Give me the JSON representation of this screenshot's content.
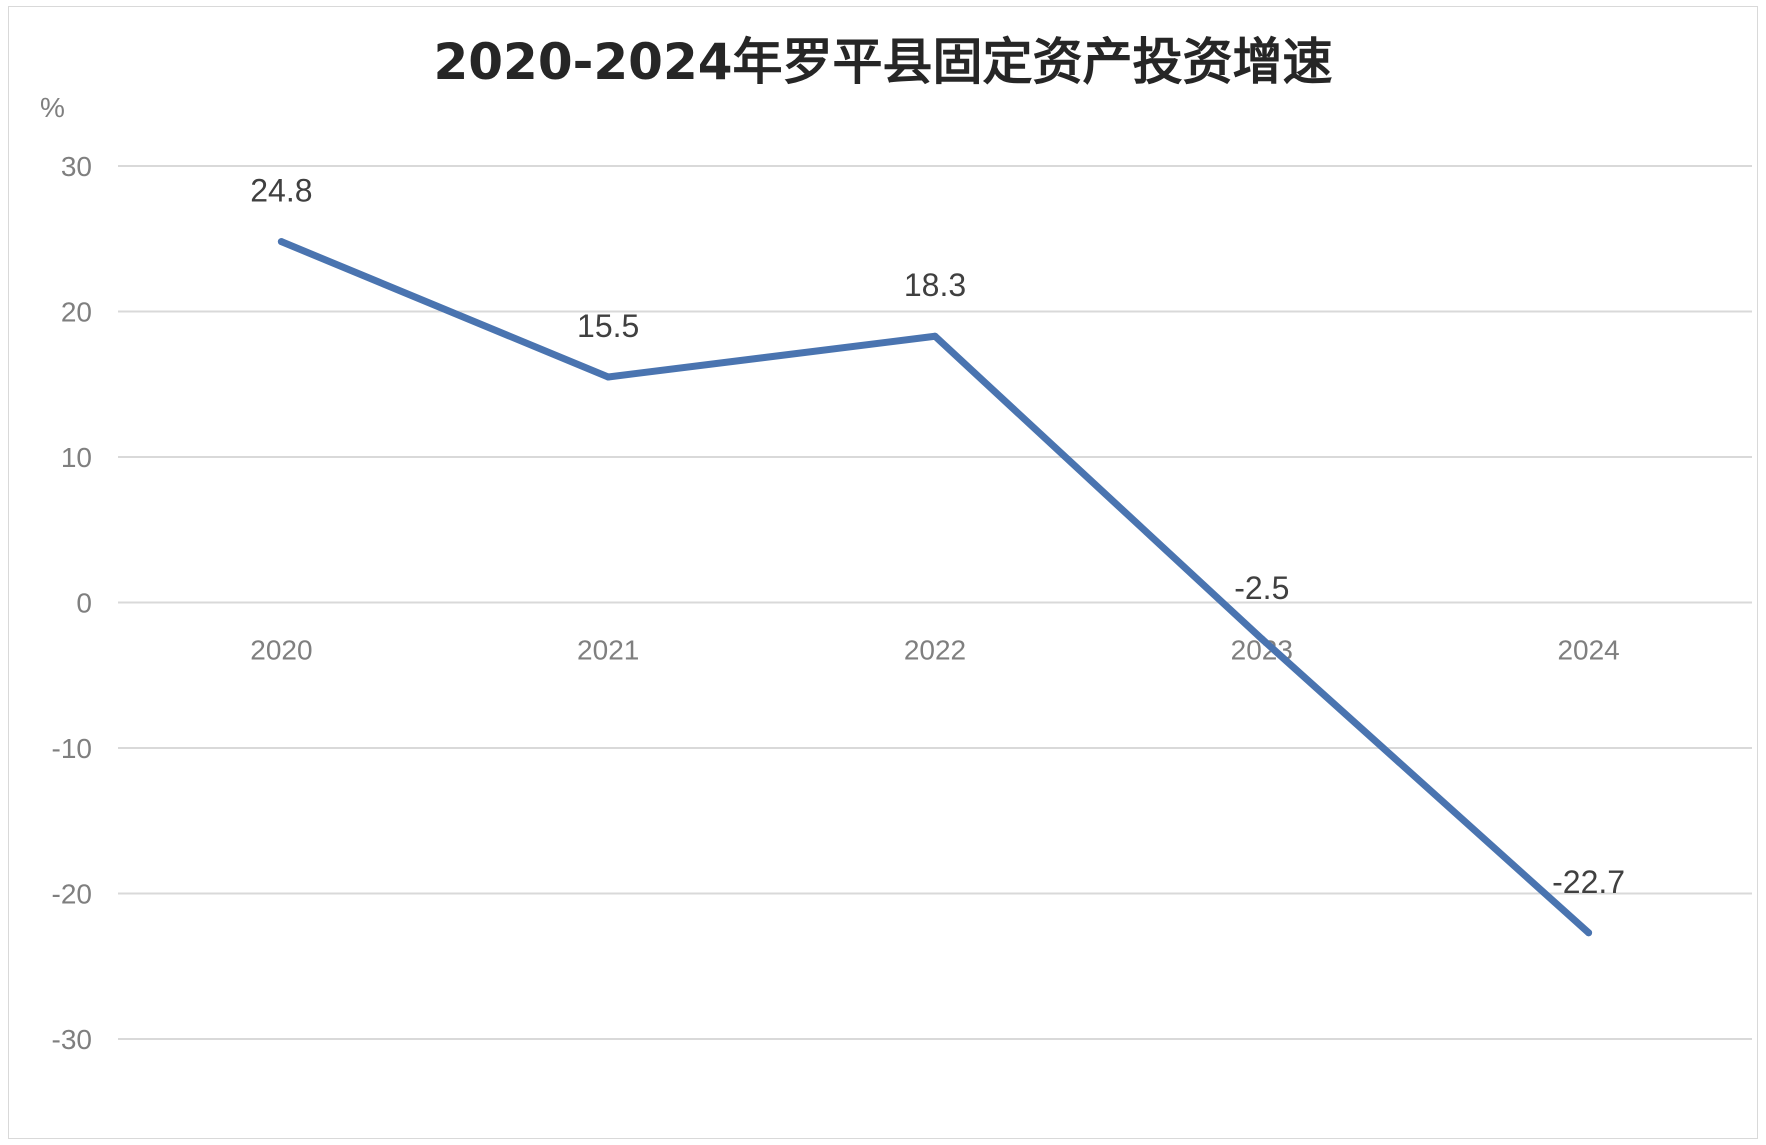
{
  "chart_data": {
    "type": "line",
    "title": "2020-2024年罗平县固定资产投资增速",
    "ylabel": "%",
    "xlabel": "",
    "categories": [
      "2020",
      "2021",
      "2022",
      "2023",
      "2024"
    ],
    "series": [
      {
        "values": [
          24.8,
          15.5,
          18.3,
          -2.5,
          -22.7
        ],
        "color": "#4a74b0"
      }
    ],
    "data_labels": [
      "24.8",
      "15.5",
      "18.3",
      "-2.5",
      "-22.7"
    ],
    "ylim": [
      -30,
      30
    ],
    "yticks": [
      30,
      20,
      10,
      0,
      -10,
      -20,
      -30
    ],
    "grid": true,
    "legend": "none",
    "colors": {
      "gridline": "#d9d9d9",
      "tick_text": "#7f7f7f",
      "label_text": "#404040"
    }
  }
}
